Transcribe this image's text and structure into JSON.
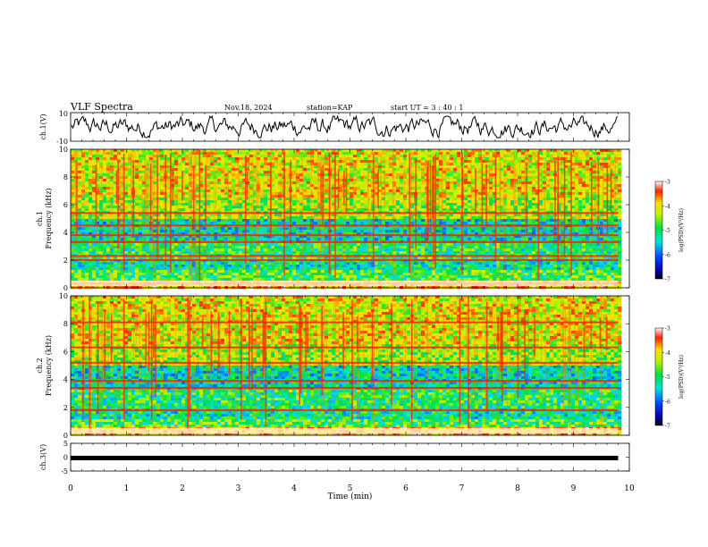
{
  "header": {
    "title": "VLF Spectra",
    "date": "Nov.18, 2024",
    "station": "station=KAP",
    "start_ut": "start  UT =  3 : 40 : 1"
  },
  "chart_data": [
    {
      "type": "line",
      "name": "ch1-waveform",
      "ylabel": "ch.1(V)",
      "ylim": [
        -10,
        10
      ],
      "ytick_labels": [
        "10",
        "-10"
      ],
      "xlim": [
        0,
        10
      ],
      "data_end_min": 9.8
    },
    {
      "type": "heatmap",
      "name": "ch1-spectrogram",
      "ylabel": "ch.1 Frequency (kHz)",
      "ylim": [
        0,
        10
      ],
      "ytick_labels": [
        "0",
        "2",
        "4",
        "6",
        "8",
        "10"
      ],
      "xlim": [
        0,
        10
      ],
      "colorbar": {
        "label": "log(PSD)(V²/Hz)",
        "range": [
          -7,
          -3
        ],
        "tick_labels": [
          "-3",
          "-4",
          "-5",
          "-6",
          "-7"
        ]
      },
      "strong_bands_khz": [
        0.3,
        2.0,
        2.3,
        3.3,
        3.8,
        4.5,
        5.4
      ]
    },
    {
      "type": "heatmap",
      "name": "ch2-spectrogram",
      "ylabel": "ch.2 Frequency (kHz)",
      "ylim": [
        0,
        10
      ],
      "ytick_labels": [
        "0",
        "2",
        "4",
        "6",
        "8",
        "10"
      ],
      "xlim": [
        0,
        10
      ],
      "colorbar": {
        "label": "log(PSD)(V²/Hz)",
        "range": [
          -7,
          -3
        ],
        "tick_labels": [
          "-3",
          "-4",
          "-5",
          "-6",
          "-7"
        ]
      },
      "strong_bands_khz": [
        1.8,
        3.4,
        3.9,
        5.2,
        6.3,
        8.1
      ]
    },
    {
      "type": "line",
      "name": "ch3-level",
      "ylabel": "ch.3(V)",
      "ylim": [
        -5,
        5
      ],
      "ytick_labels": [
        "5",
        "0",
        "-5"
      ],
      "xlim": [
        0,
        10
      ],
      "constant_value_v": -0.3
    }
  ],
  "x_axis": {
    "label": "Time (min)",
    "tick_labels": [
      "0",
      "1",
      "2",
      "3",
      "4",
      "5",
      "6",
      "7",
      "8",
      "9",
      "10"
    ]
  }
}
